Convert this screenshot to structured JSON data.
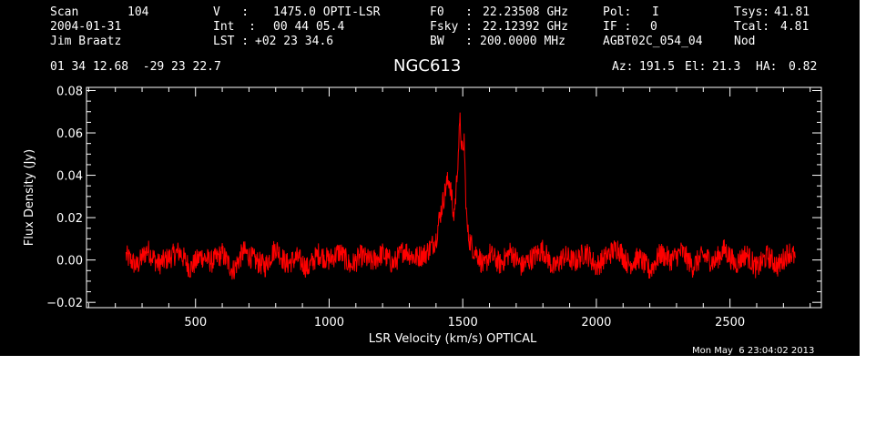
{
  "header": {
    "scan_label": "Scan",
    "scan_value": "104",
    "date": "2004-01-31",
    "observer": "Jim Braatz",
    "v_label": "V   :",
    "v_value": "1475.0 OPTI-LSR",
    "int_label": "Int  :",
    "int_value": "00 44 05.4",
    "lst_label": "LST :",
    "lst_value": "+02 23 34.6",
    "f0_label": "F0   :",
    "f0_value": "22.23508 GHz",
    "fsky_label": "Fsky :",
    "fsky_value": "22.12392 GHz",
    "bw_label": "BW   :",
    "bw_value": "200.0000 MHz",
    "pol_label": "Pol:",
    "pol_value": "I",
    "if_label": "IF :",
    "if_value": "0",
    "project": "AGBT02C_054_04",
    "tsys_label": "Tsys:",
    "tsys_value": "41.81",
    "tcal_label": "Tcal:",
    "tcal_value": "4.81",
    "mode": "Nod",
    "coords": "01 34 12.68  -29 23 22.7",
    "source": "NGC613",
    "az_label": "Az:",
    "az_value": "191.5",
    "el_label": "El:",
    "el_value": "21.3",
    "ha_label": "HA:",
    "ha_value": "0.82",
    "timestamp": "Mon May  6 23:04:02 2013"
  },
  "colors": {
    "background": "#000000",
    "axes": "#ffffff",
    "spectrum": "#ff0000"
  },
  "chart_data": {
    "type": "line",
    "title": "NGC613",
    "xlabel": "LSR Velocity (km/s) OPTICAL",
    "ylabel": "Flux Density (Jy)",
    "xlim": [
      92,
      2842
    ],
    "ylim": [
      -0.0225,
      0.0815
    ],
    "xticks": [
      500,
      1000,
      1500,
      2000,
      2500
    ],
    "xtick_labels": [
      "500",
      "1000",
      "1500",
      "2000",
      "2500"
    ],
    "yticks": [
      -0.02,
      0.0,
      0.02,
      0.04,
      0.06,
      0.08
    ],
    "ytick_labels": [
      "−0.02",
      "0.00",
      "0.02",
      "0.04",
      "0.06",
      "0.08"
    ],
    "grid": false,
    "series": [
      {
        "x": [
          240,
          280,
          320,
          360,
          400,
          440,
          480,
          520,
          560,
          600,
          640,
          680,
          720,
          760,
          800,
          840,
          880,
          920,
          960,
          1000,
          1040,
          1080,
          1120,
          1160,
          1200,
          1240,
          1280,
          1320,
          1360,
          1380,
          1400,
          1410,
          1420,
          1430,
          1440,
          1450,
          1460,
          1465,
          1470,
          1475,
          1480,
          1485,
          1490,
          1495,
          1500,
          1505,
          1510,
          1515,
          1520,
          1530,
          1540,
          1560,
          1580,
          1600,
          1640,
          1680,
          1720,
          1760,
          1800,
          1840,
          1880,
          1920,
          1960,
          2000,
          2040,
          2080,
          2120,
          2160,
          2200,
          2240,
          2280,
          2320,
          2360,
          2400,
          2440,
          2480,
          2520,
          2560,
          2600,
          2640,
          2680,
          2720,
          2745
        ],
        "y": [
          0.002,
          -0.003,
          0.005,
          -0.002,
          0.001,
          0.004,
          -0.004,
          0.002,
          -0.001,
          0.003,
          -0.005,
          0.004,
          0.0,
          -0.003,
          0.006,
          -0.002,
          0.001,
          -0.004,
          0.003,
          0.0,
          0.004,
          -0.003,
          0.002,
          -0.001,
          0.003,
          -0.002,
          0.005,
          0.001,
          0.003,
          0.006,
          0.01,
          0.018,
          0.024,
          0.03,
          0.036,
          0.038,
          0.028,
          0.02,
          0.025,
          0.032,
          0.044,
          0.055,
          0.065,
          0.056,
          0.048,
          0.058,
          0.035,
          0.018,
          0.012,
          0.008,
          0.005,
          0.002,
          -0.004,
          0.003,
          -0.002,
          0.004,
          -0.003,
          0.001,
          0.005,
          -0.004,
          0.002,
          -0.001,
          0.004,
          -0.003,
          0.002,
          0.006,
          -0.002,
          0.001,
          -0.005,
          0.003,
          0.0,
          0.004,
          -0.003,
          0.002,
          -0.001,
          0.005,
          -0.002,
          0.003,
          -0.004,
          0.002,
          -0.003,
          0.004,
          0.001
        ]
      }
    ]
  }
}
